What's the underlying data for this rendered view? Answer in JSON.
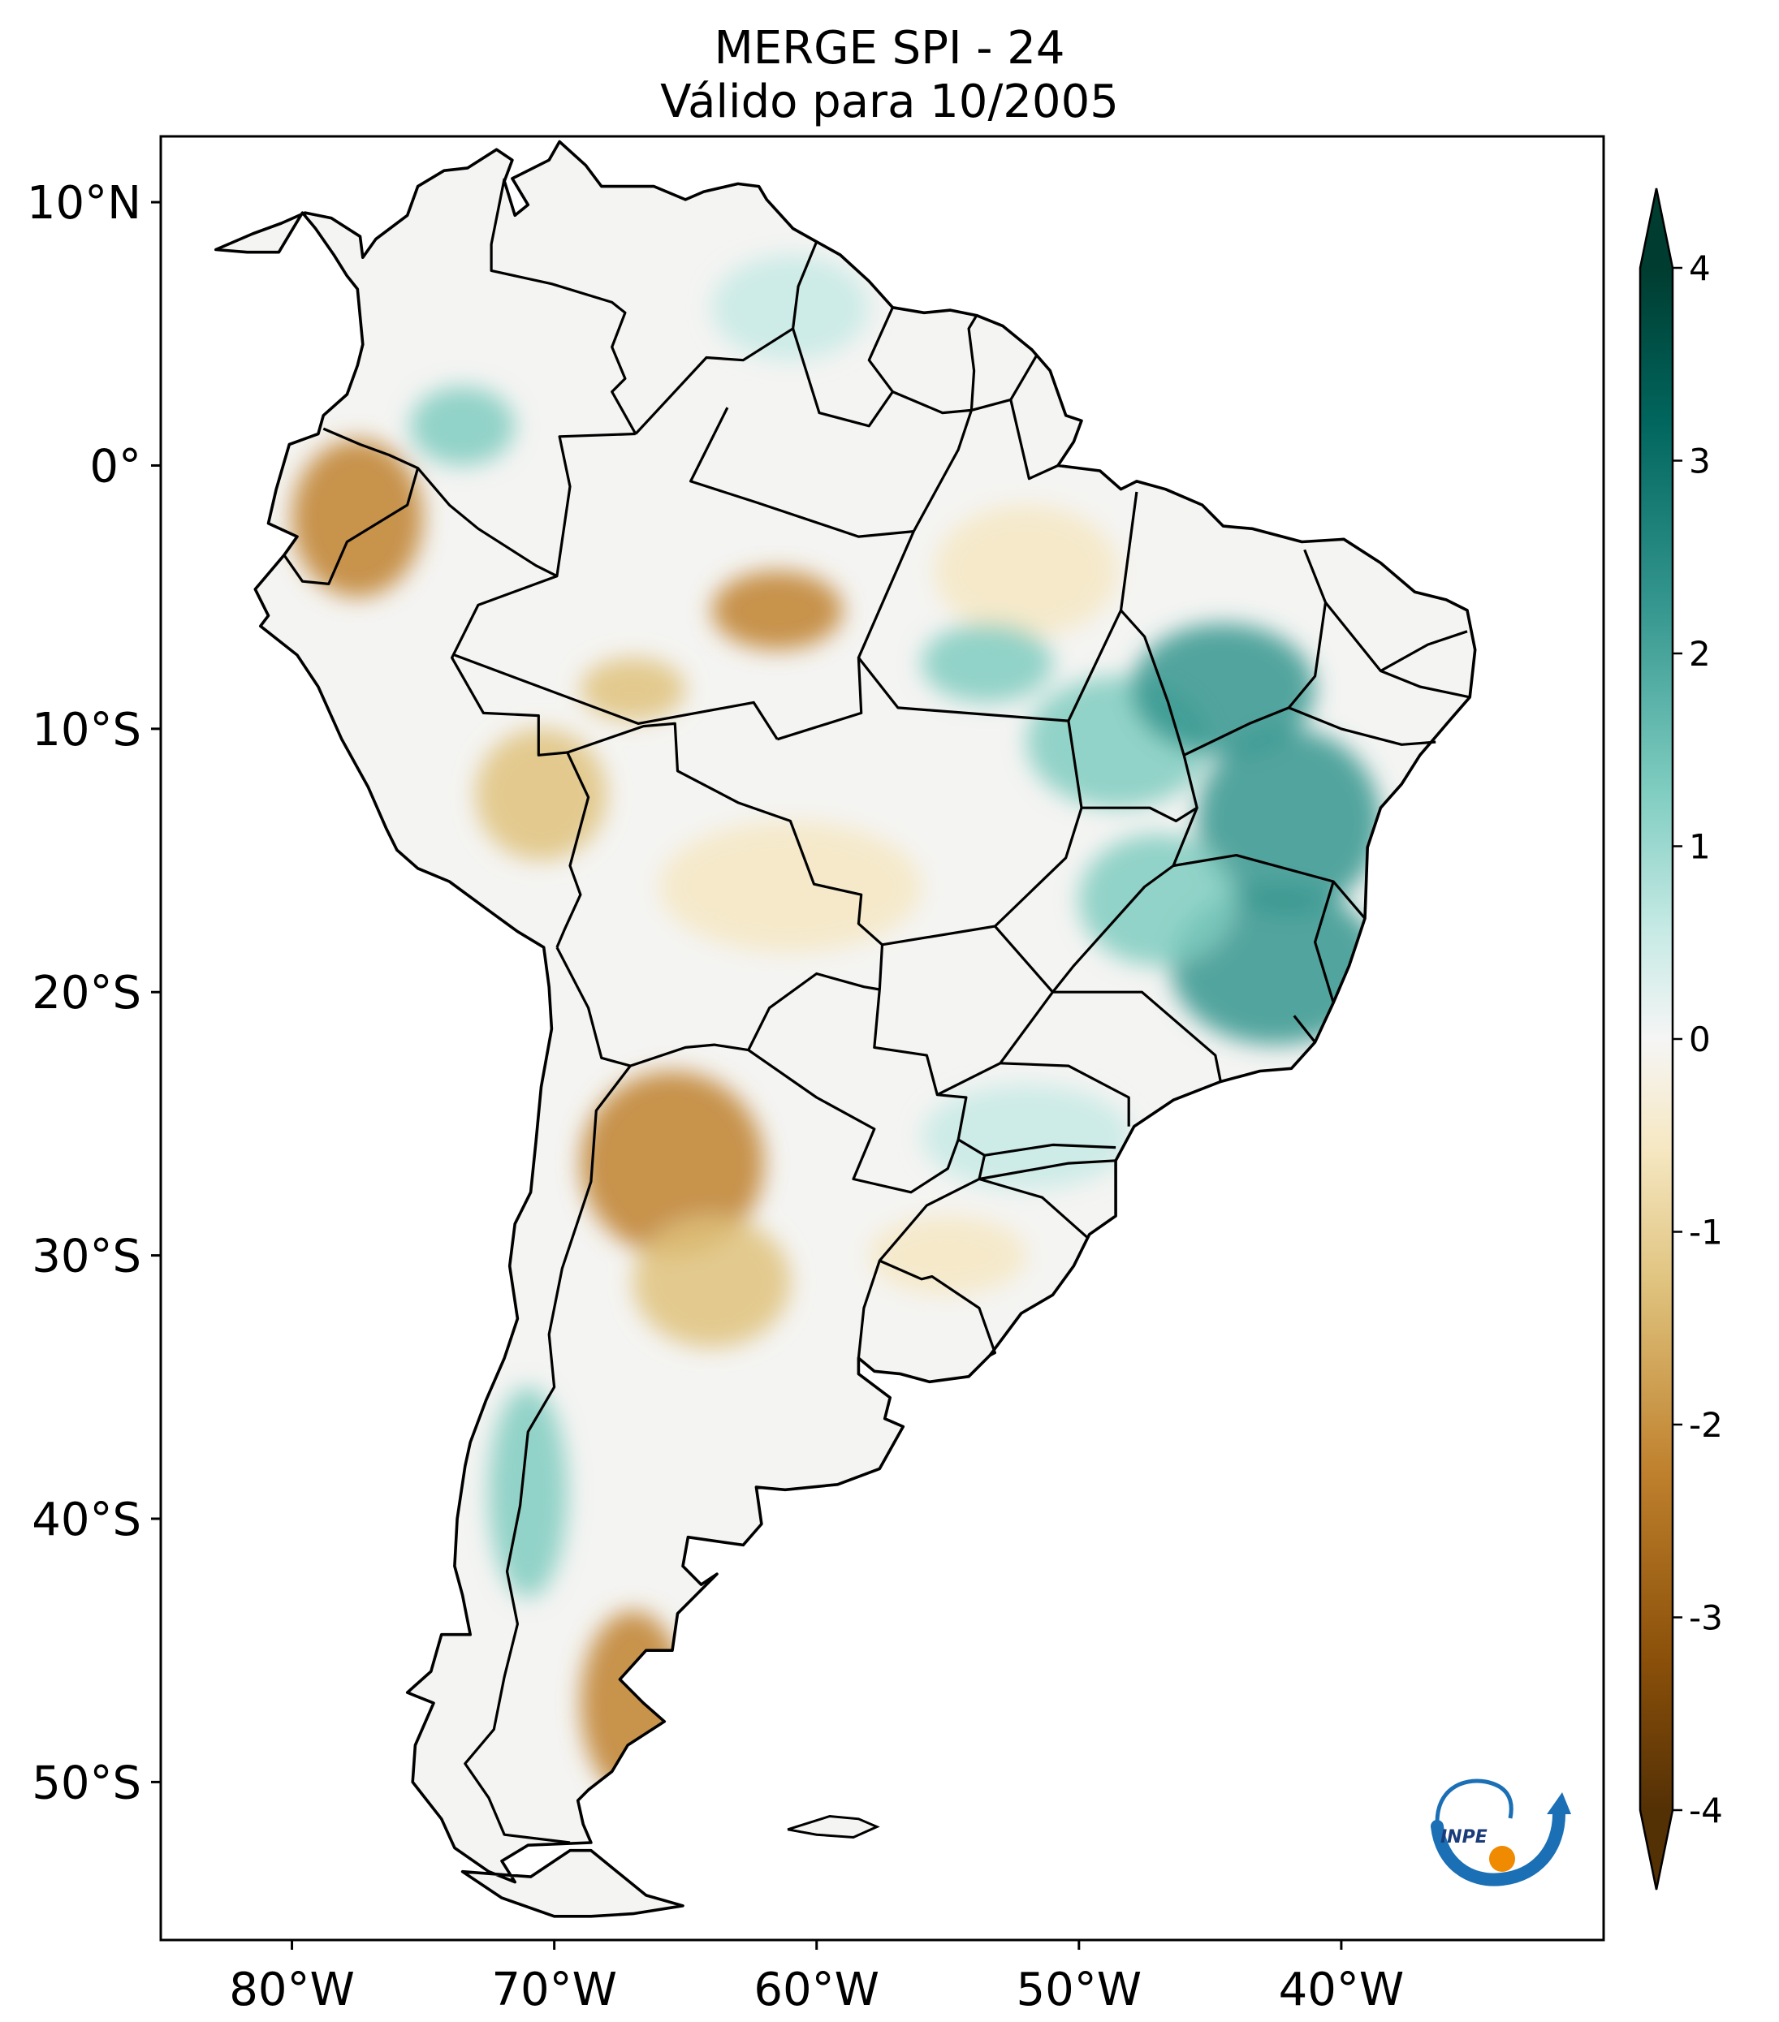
{
  "title": {
    "line1": "MERGE   SPI - 24",
    "line2": "Válido para 10/2005"
  },
  "map": {
    "lat_range": [
      -56,
      12.5
    ],
    "lon_range": [
      -85,
      -30
    ],
    "lat_ticks": [
      {
        "value": 10,
        "label": "10°N"
      },
      {
        "value": 0,
        "label": "0°"
      },
      {
        "value": -10,
        "label": "10°S"
      },
      {
        "value": -20,
        "label": "20°S"
      },
      {
        "value": -30,
        "label": "30°S"
      },
      {
        "value": -40,
        "label": "40°S"
      },
      {
        "value": -50,
        "label": "50°S"
      }
    ],
    "lon_ticks": [
      {
        "value": -80,
        "label": "80°W"
      },
      {
        "value": -70,
        "label": "70°W"
      },
      {
        "value": -60,
        "label": "60°W"
      },
      {
        "value": -50,
        "label": "50°W"
      },
      {
        "value": -40,
        "label": "40°W"
      }
    ],
    "anomaly_regions": [
      {
        "lon": -77.5,
        "lat": -2.0,
        "rx": 2.5,
        "ry": 3.0,
        "spi": -2.0
      },
      {
        "lon": -73.5,
        "lat": 1.5,
        "rx": 2.0,
        "ry": 1.5,
        "spi": 1.5
      },
      {
        "lon": -61.5,
        "lat": -5.5,
        "rx": 2.5,
        "ry": 1.5,
        "spi": -1.6
      },
      {
        "lon": -67.0,
        "lat": -8.5,
        "rx": 2.0,
        "ry": 1.2,
        "spi": -1.5
      },
      {
        "lon": -70.5,
        "lat": -12.5,
        "rx": 2.5,
        "ry": 2.5,
        "spi": -1.3
      },
      {
        "lon": -61.0,
        "lat": -16.0,
        "rx": 5.0,
        "ry": 2.5,
        "spi": -0.8
      },
      {
        "lon": -65.5,
        "lat": -26.5,
        "rx": 3.5,
        "ry": 3.5,
        "spi": -2.0
      },
      {
        "lon": -64.0,
        "lat": -31.0,
        "rx": 3.0,
        "ry": 2.5,
        "spi": -1.2
      },
      {
        "lon": -67.0,
        "lat": -47.0,
        "rx": 2.0,
        "ry": 3.5,
        "spi": -1.8
      },
      {
        "lon": -52.0,
        "lat": -4.0,
        "rx": 3.5,
        "ry": 2.5,
        "spi": -0.9
      },
      {
        "lon": -48.5,
        "lat": -10.5,
        "rx": 3.5,
        "ry": 2.5,
        "spi": 1.5
      },
      {
        "lon": -53.5,
        "lat": -7.5,
        "rx": 2.5,
        "ry": 1.5,
        "spi": 1.4
      },
      {
        "lon": -44.5,
        "lat": -8.5,
        "rx": 3.5,
        "ry": 2.5,
        "spi": 2.0
      },
      {
        "lon": -42.0,
        "lat": -13.5,
        "rx": 3.5,
        "ry": 3.5,
        "spi": 1.8
      },
      {
        "lon": -42.5,
        "lat": -19.0,
        "rx": 4.0,
        "ry": 3.0,
        "spi": 1.7
      },
      {
        "lon": -47.0,
        "lat": -16.5,
        "rx": 3.0,
        "ry": 2.5,
        "spi": 1.3
      },
      {
        "lon": -52.0,
        "lat": -25.5,
        "rx": 4.0,
        "ry": 2.0,
        "spi": 0.8
      },
      {
        "lon": -61.0,
        "lat": 6.0,
        "rx": 3.0,
        "ry": 2.0,
        "spi": 0.9
      },
      {
        "lon": -71.0,
        "lat": -39.0,
        "rx": 1.5,
        "ry": 4.0,
        "spi": 1.0
      },
      {
        "lon": -55.0,
        "lat": -30.0,
        "rx": 3.0,
        "ry": 1.5,
        "spi": -0.7
      }
    ]
  },
  "colorbar": {
    "min": -4,
    "max": 4,
    "ticks": [
      {
        "value": 4,
        "label": "4"
      },
      {
        "value": 3,
        "label": "3"
      },
      {
        "value": 2,
        "label": "2"
      },
      {
        "value": 1,
        "label": "1"
      },
      {
        "value": 0,
        "label": "0"
      },
      {
        "value": -1,
        "label": "-1"
      },
      {
        "value": -2,
        "label": "-2"
      },
      {
        "value": -3,
        "label": "-3"
      },
      {
        "value": -4,
        "label": "-4"
      }
    ],
    "colors": {
      "dry_extreme": "#543005",
      "dry_strong": "#8c510a",
      "dry_moderate": "#bf812d",
      "dry_mild": "#dfc27d",
      "dry_slight": "#f6e8c3",
      "neutral": "#f5f5f5",
      "wet_slight": "#c7eae5",
      "wet_mild": "#80cdc1",
      "wet_moderate": "#35978f",
      "wet_strong": "#01665e",
      "wet_extreme": "#003c30"
    }
  },
  "logo": {
    "text": "INPE"
  }
}
